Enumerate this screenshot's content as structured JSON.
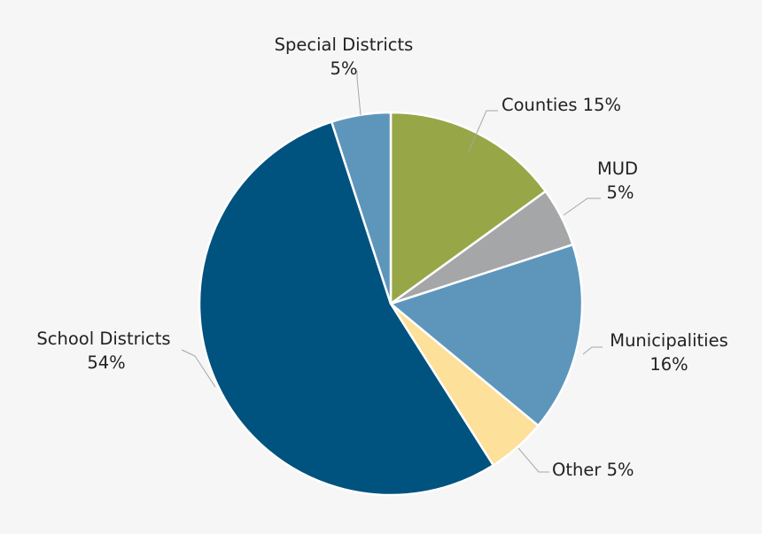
{
  "chart_data": {
    "type": "pie",
    "title": "",
    "start_angle_deg": 0,
    "direction": "clockwise",
    "slices": [
      {
        "label": "Counties",
        "pct_text": "15%",
        "value": 15,
        "color": "#97a647"
      },
      {
        "label": "MUD",
        "pct_text": "5%",
        "value": 5,
        "color": "#a5a6a8"
      },
      {
        "label": "Municipalities",
        "pct_text": "16%",
        "value": 16,
        "color": "#5e96bb"
      },
      {
        "label": "Other",
        "pct_text": "5%",
        "value": 5,
        "color": "#fde099"
      },
      {
        "label": "School Districts",
        "pct_text": "54%",
        "value": 54,
        "color": "#00527f"
      },
      {
        "label": "Special Districts",
        "pct_text": "5%",
        "value": 5,
        "color": "#5e96bb"
      }
    ],
    "labels": {
      "counties": "Counties 15%",
      "mud_name": "MUD",
      "mud_pct": "5%",
      "municipalities_name": "Municipalities",
      "municipalities_pct": "16%",
      "other": "Other 5%",
      "school_name": "School Districts",
      "school_pct": "54%",
      "special_name": "Special Districts",
      "special_pct": "5%"
    }
  }
}
